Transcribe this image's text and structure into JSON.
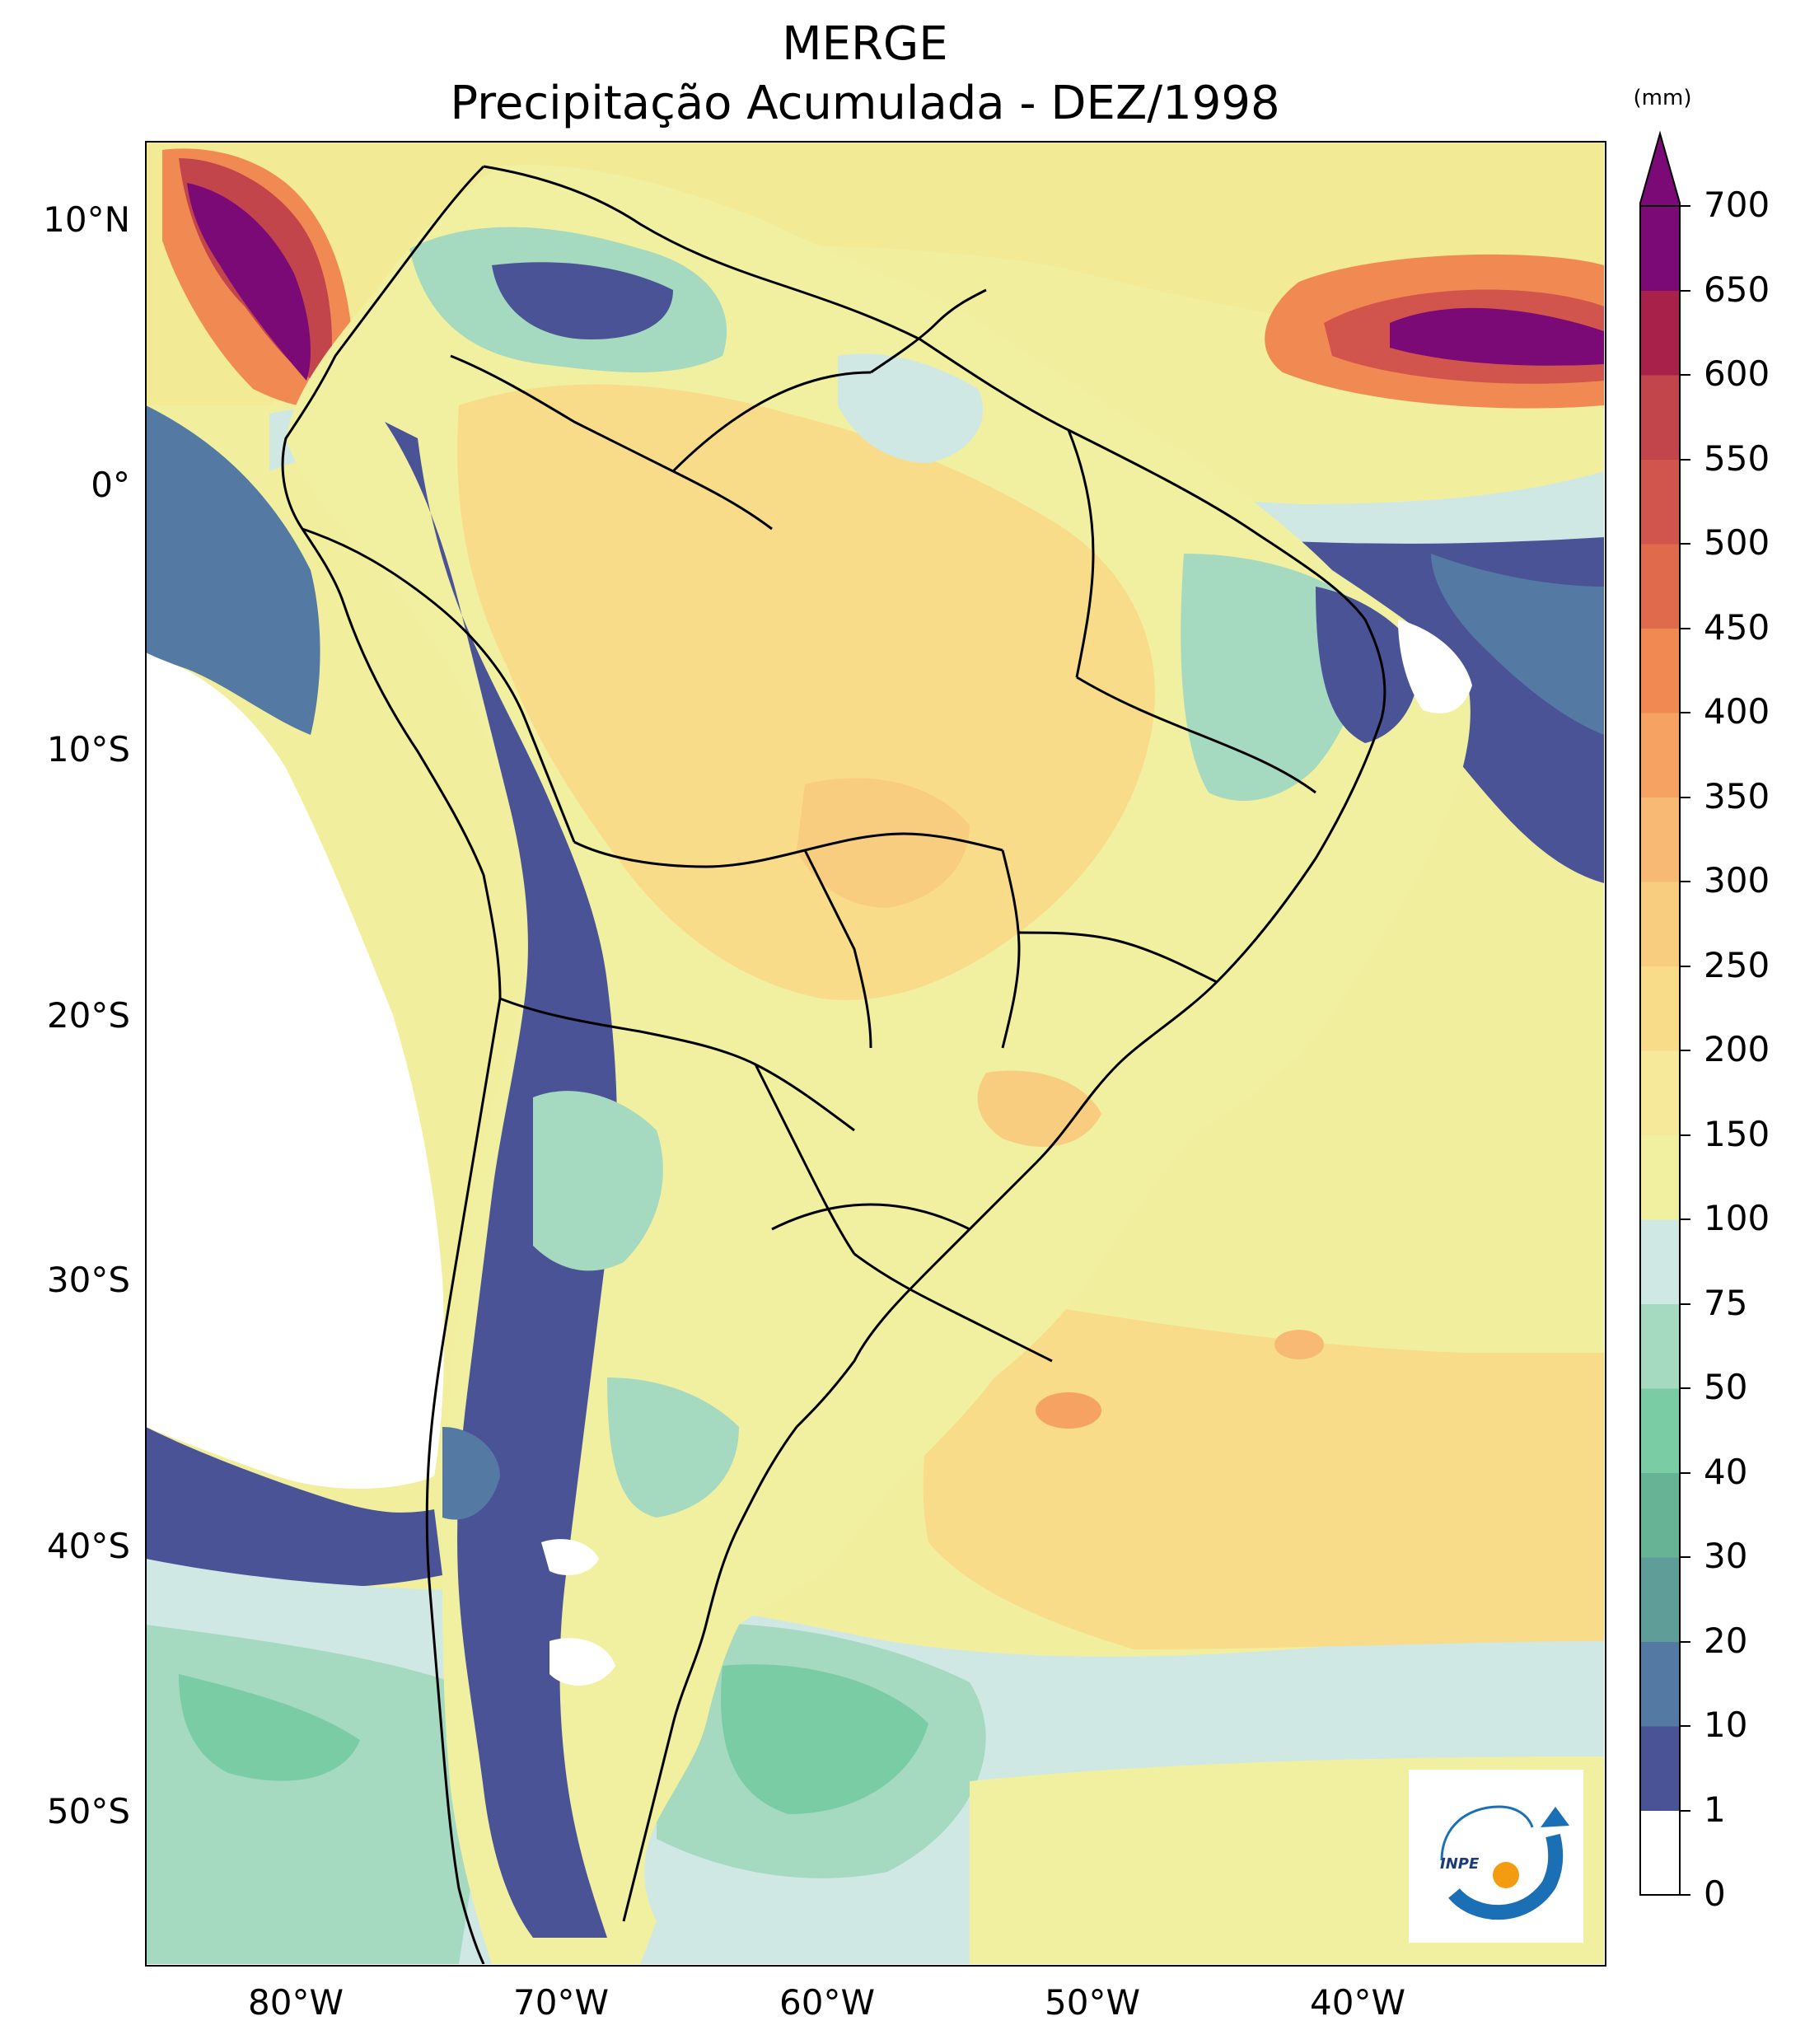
{
  "title": {
    "line1": "MERGE",
    "line2": "Precipitação Acumulada - DEZ/1998"
  },
  "axes": {
    "lat_ticks": [
      "10°N",
      "0°",
      "10°S",
      "20°S",
      "30°S",
      "40°S",
      "50°S"
    ],
    "lon_ticks": [
      "80°W",
      "70°W",
      "60°W",
      "50°W",
      "40°W"
    ]
  },
  "colorbar": {
    "unit": "(mm)",
    "levels": [
      "0",
      "1",
      "10",
      "20",
      "30",
      "40",
      "50",
      "75",
      "100",
      "150",
      "200",
      "250",
      "300",
      "350",
      "400",
      "450",
      "500",
      "550",
      "600",
      "650",
      "700"
    ],
    "colors": [
      "#ffffff",
      "#4a5396",
      "#5479a3",
      "#5f9e98",
      "#66b495",
      "#79cca3",
      "#a5d9c0",
      "#cfe8e4",
      "#f1f0a0",
      "#f6e99a",
      "#f8dc8a",
      "#f8cd80",
      "#f7b974",
      "#f5a263",
      "#f08a52",
      "#e06a4c",
      "#d1554c",
      "#c2454c",
      "#a8214b",
      "#7b0a76"
    ],
    "extend": "max"
  },
  "logo": {
    "text": "INPE",
    "colors": {
      "arc": "#1a6fb5",
      "dot": "#f39c12"
    }
  },
  "map": {
    "extent": {
      "lon": [
        -85,
        -30
      ],
      "lat": [
        -56,
        12.5
      ]
    }
  }
}
